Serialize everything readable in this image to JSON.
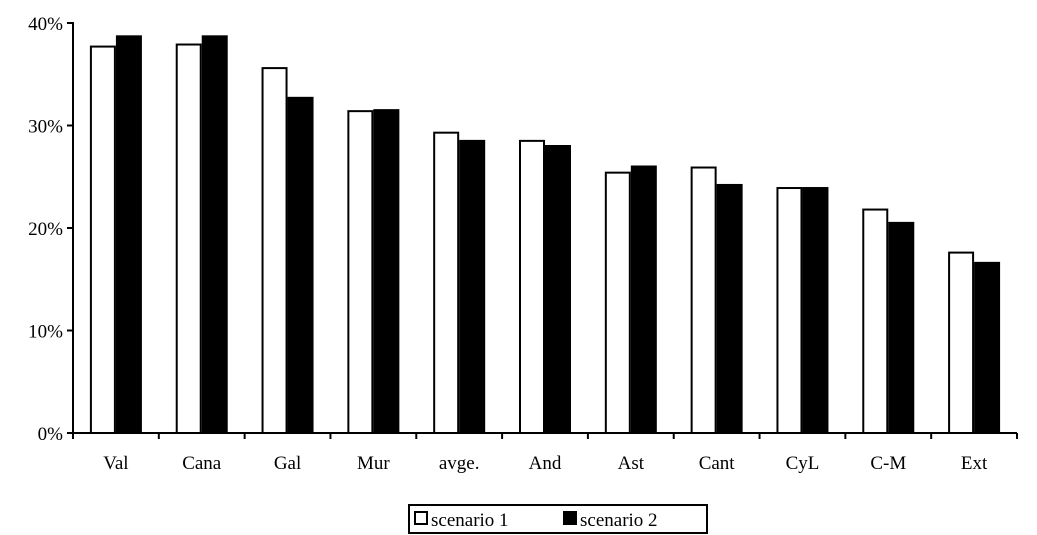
{
  "chart_data": {
    "type": "bar",
    "categories": [
      "Val",
      "Cana",
      "Gal",
      "Mur",
      "avge.",
      "And",
      "Ast",
      "Cant",
      "CyL",
      "C-M",
      "Ext"
    ],
    "series": [
      {
        "name": "scenario 1",
        "color": "#ffffff",
        "values": [
          37.7,
          37.9,
          35.6,
          31.4,
          29.3,
          28.5,
          25.4,
          25.9,
          23.9,
          21.8,
          17.6
        ]
      },
      {
        "name": "scenario 2",
        "color": "#000000",
        "values": [
          38.7,
          38.7,
          32.7,
          31.5,
          28.5,
          28.0,
          26.0,
          24.2,
          23.9,
          20.5,
          16.6
        ]
      }
    ],
    "ylim": [
      0,
      40
    ],
    "yticks": [
      {
        "value": 0,
        "label": "0%"
      },
      {
        "value": 10,
        "label": "10%"
      },
      {
        "value": 20,
        "label": "20%"
      },
      {
        "value": 30,
        "label": "30%"
      },
      {
        "value": 40,
        "label": "40%"
      }
    ],
    "title": "",
    "xlabel": "",
    "ylabel": "",
    "grid": false,
    "legend_position": "bottom-center"
  }
}
